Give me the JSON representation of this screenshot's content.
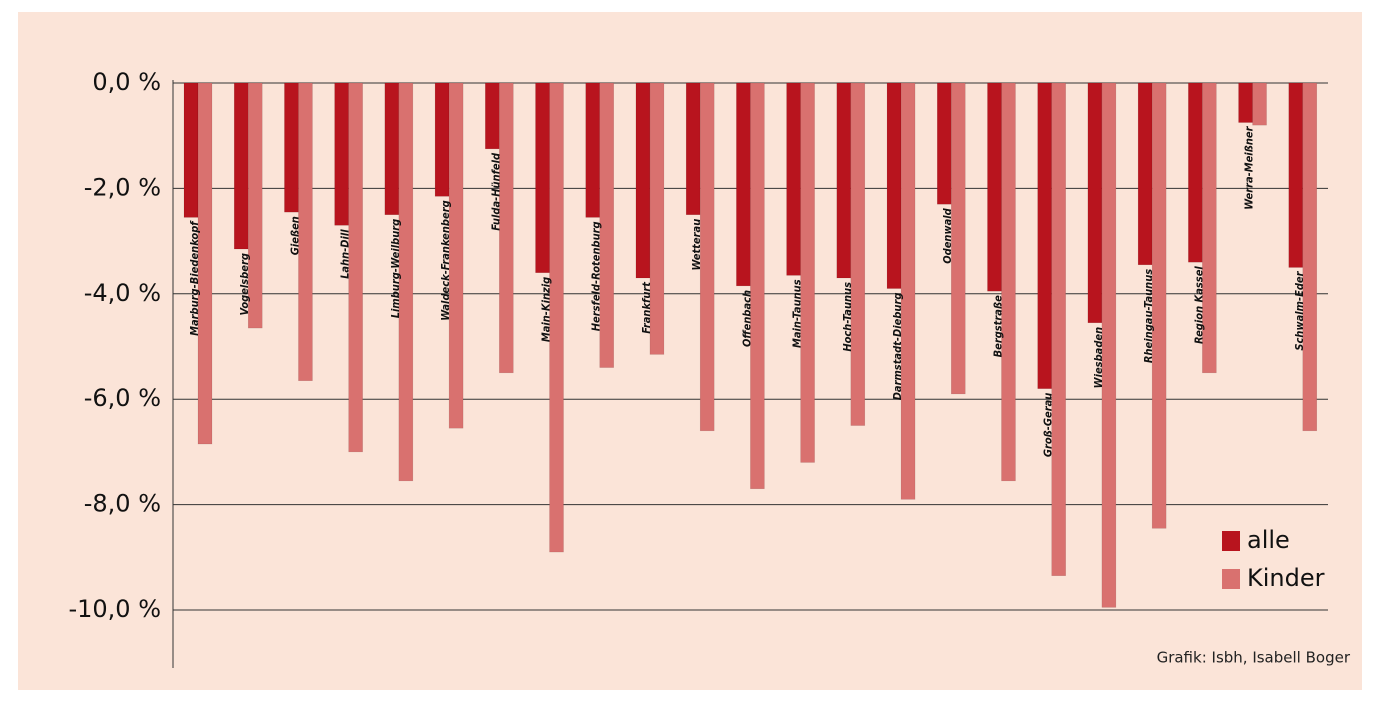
{
  "chart_data": {
    "type": "bar",
    "categories": [
      "Marburg-Biedenkopf",
      "Vogelsberg",
      "Gießen",
      "Lahn-Dill",
      "Limburg-Weilburg",
      "Waldeck-Frankenberg",
      "Fulda-Hünfeld",
      "Main-Kinzig",
      "Hersfeld-Rotenburg",
      "Frankfurt",
      "Wetterau",
      "Offenbach",
      "Main-Taunus",
      "Hoch-Taunus",
      "Darmstadt-Dieburg",
      "Odenwald",
      "Bergstraße",
      "Groß-Gerau",
      "Wiesbaden",
      "Rheingau-Taunus",
      "Region Kassel",
      "Werra-Meißner",
      "Schwalm-Eder"
    ],
    "series": [
      {
        "name": "alle",
        "color": "#b8141e",
        "values": [
          -2.55,
          -3.15,
          -2.45,
          -2.7,
          -2.5,
          -2.15,
          -1.25,
          -3.6,
          -2.55,
          -3.7,
          -2.5,
          -3.85,
          -3.65,
          -3.7,
          -3.9,
          -2.3,
          -3.95,
          -5.8,
          -4.55,
          -3.45,
          -3.4,
          -0.75,
          -3.5
        ]
      },
      {
        "name": "Kinder",
        "color": "#d9716f",
        "values": [
          -6.85,
          -4.65,
          -5.65,
          -7.0,
          -7.55,
          -6.55,
          -5.5,
          -8.9,
          -5.4,
          -5.15,
          -6.6,
          -7.7,
          -7.2,
          -6.5,
          -7.9,
          -5.9,
          -7.55,
          -9.35,
          -9.95,
          -8.45,
          -5.5,
          -0.8,
          -6.6
        ]
      }
    ],
    "ylim": [
      -11.1,
      0
    ],
    "yticks": [
      {
        "value": 0,
        "label": "0,0 %"
      },
      {
        "value": -2,
        "label": "-2,0 %"
      },
      {
        "value": -4,
        "label": "-4,0 %"
      },
      {
        "value": -6,
        "label": "-6,0 %"
      },
      {
        "value": -8,
        "label": "-8,0 %"
      },
      {
        "value": -10,
        "label": "-10,0 %"
      }
    ],
    "grid": true,
    "legend": "lower right",
    "credit": "Grafik: Isbh, Isabell Boger"
  }
}
